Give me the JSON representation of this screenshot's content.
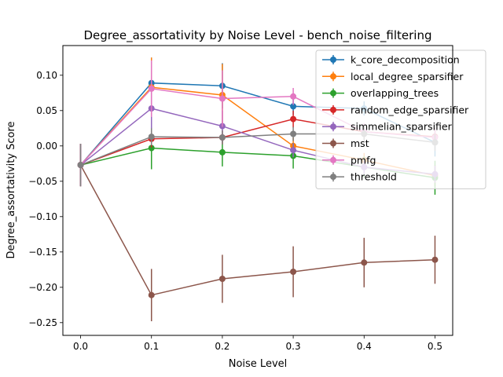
{
  "chart_data": {
    "type": "line",
    "title": "Degree_assortativity by Noise Level - bench_noise_filtering",
    "xlabel": "Noise Level",
    "ylabel": "Degree_assortativity Score",
    "x": [
      0.0,
      0.1,
      0.2,
      0.3,
      0.4,
      0.5
    ],
    "xlim": [
      -0.025,
      0.525
    ],
    "ylim": [
      -0.268,
      0.142
    ],
    "xticks": [
      0.0,
      0.1,
      0.2,
      0.3,
      0.4,
      0.5
    ],
    "xtick_labels": [
      "0.0",
      "0.1",
      "0.2",
      "0.3",
      "0.4",
      "0.5"
    ],
    "yticks": [
      -0.25,
      -0.2,
      -0.15,
      -0.1,
      -0.05,
      0.0,
      0.05,
      0.1
    ],
    "ytick_labels": [
      "−0.25",
      "−0.20",
      "−0.15",
      "−0.10",
      "−0.05",
      "0.00",
      "0.05",
      "0.10"
    ],
    "grid": false,
    "legend_position": "top-right",
    "error_bars": true,
    "series": [
      {
        "name": "k_core_decomposition",
        "color": "#1f77b4",
        "values": [
          -0.027,
          0.089,
          0.085,
          0.056,
          0.053,
          0.005
        ],
        "errors": [
          0.03,
          0.036,
          0.032,
          0.012,
          0.01,
          0.02
        ]
      },
      {
        "name": "local_degree_sparsifier",
        "color": "#ff7f0e",
        "values": [
          -0.027,
          0.083,
          0.072,
          0.0,
          -0.02,
          -0.042
        ],
        "errors": [
          0.03,
          0.042,
          0.044,
          0.012,
          0.01,
          0.015
        ]
      },
      {
        "name": "overlapping_trees",
        "color": "#2ca02c",
        "values": [
          -0.027,
          -0.003,
          -0.009,
          -0.014,
          -0.03,
          -0.045
        ],
        "errors": [
          0.03,
          0.03,
          0.02,
          0.018,
          0.015,
          0.024
        ]
      },
      {
        "name": "random_edge_sparsifier",
        "color": "#d62728",
        "values": [
          -0.027,
          0.01,
          0.012,
          0.038,
          0.02,
          0.013
        ],
        "errors": [
          0.03,
          0.012,
          0.01,
          0.012,
          0.01,
          0.012
        ]
      },
      {
        "name": "simmelian_sparsifier",
        "color": "#9467bd",
        "values": [
          -0.027,
          0.053,
          0.028,
          -0.006,
          -0.03,
          -0.04
        ],
        "errors": [
          0.03,
          0.03,
          0.022,
          0.01,
          0.01,
          0.012
        ]
      },
      {
        "name": "mst",
        "color": "#8c564b",
        "values": [
          -0.027,
          -0.211,
          -0.188,
          -0.178,
          -0.165,
          -0.161
        ],
        "errors": [
          0.03,
          0.037,
          0.034,
          0.036,
          0.035,
          0.034
        ]
      },
      {
        "name": "pmfg",
        "color": "#e377c2",
        "values": [
          -0.027,
          0.081,
          0.067,
          0.07,
          0.02,
          0.012
        ],
        "errors": [
          0.03,
          0.04,
          0.04,
          0.012,
          0.012,
          0.012
        ]
      },
      {
        "name": "threshold",
        "color": "#7f7f7f",
        "values": [
          -0.027,
          0.013,
          0.012,
          0.017,
          0.017,
          0.005
        ],
        "errors": [
          0.03,
          0.012,
          0.01,
          0.01,
          0.012,
          0.012
        ]
      }
    ]
  }
}
